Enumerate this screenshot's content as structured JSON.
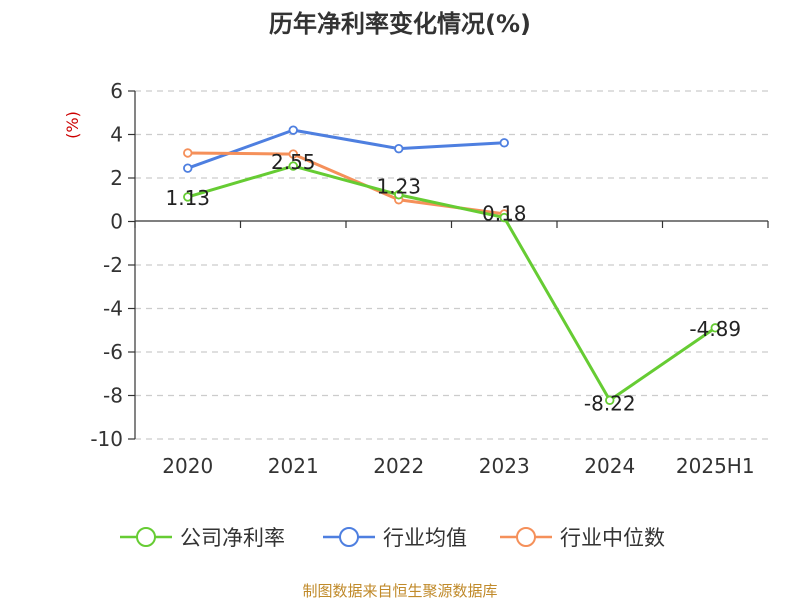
{
  "chart_data": {
    "type": "line",
    "title": "历年净利率变化情况(%)",
    "ylabel": "(%)",
    "categories": [
      "2020",
      "2021",
      "2022",
      "2023",
      "2024",
      "2025H1"
    ],
    "ylim": [
      -10,
      6
    ],
    "yticks": [
      6,
      4,
      2,
      0,
      -2,
      -4,
      -6,
      -8,
      -10
    ],
    "grid": true,
    "legend_position": "bottom",
    "series": [
      {
        "name": "公司净利率",
        "color": "#66cc33",
        "values": [
          1.13,
          2.55,
          1.23,
          0.18,
          -8.22,
          -4.89
        ],
        "labels": [
          "1.13",
          "2.55",
          "1.23",
          "0.18",
          "-8.22",
          "-4.89"
        ]
      },
      {
        "name": "行业均值",
        "color": "#4e7fe0",
        "values": [
          2.45,
          4.2,
          3.35,
          3.62,
          null,
          null
        ]
      },
      {
        "name": "行业中位数",
        "color": "#f5905a",
        "values": [
          3.15,
          3.1,
          1.0,
          0.35,
          null,
          null
        ]
      }
    ],
    "source": "制图数据来自恒生聚源数据库",
    "colors": {
      "axis": "#333333",
      "grid": "#cccccc",
      "unit_label": "#cc0000",
      "source": "#c08a2a"
    }
  }
}
